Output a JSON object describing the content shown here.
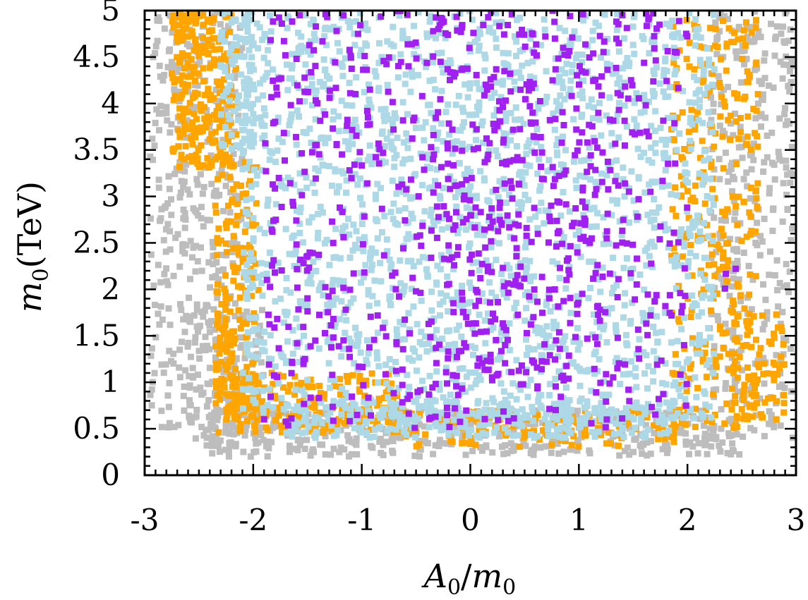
{
  "chart_data": {
    "type": "scatter",
    "title": "",
    "xlabel": {
      "main": "A",
      "sub1": "0",
      "slash": "/",
      "main2": "m",
      "sub2": "0"
    },
    "ylabel": {
      "main": "m",
      "sub": "0",
      "unit": "(TeV)"
    },
    "xlim": [
      -3,
      3
    ],
    "ylim": [
      0,
      5
    ],
    "xticks": [
      -3,
      -2,
      -1,
      0,
      1,
      2,
      3
    ],
    "xtick_labels": [
      "-3",
      "-2",
      "-1",
      "0",
      "1",
      "2",
      "3"
    ],
    "yticks": [
      0,
      0.5,
      1,
      1.5,
      2,
      2.5,
      3,
      3.5,
      4,
      4.5,
      5
    ],
    "ytick_labels": [
      "0",
      "0.5",
      "1",
      "1.5",
      "2",
      "2.5",
      "3",
      "3.5",
      "4",
      "4.5",
      "5"
    ],
    "grid": false,
    "legend": "none",
    "series": [
      {
        "name": "gray",
        "color": "#bdbdbd",
        "description": "broad background layer of scanned points",
        "regions": [
          {
            "x": [
              -2.95,
              -2.1
            ],
            "y": [
              0.5,
              5.0
            ],
            "n": 380
          },
          {
            "x": [
              2.2,
              2.97
            ],
            "y": [
              0.4,
              5.0
            ],
            "n": 340
          },
          {
            "x": [
              -2.4,
              2.5
            ],
            "y": [
              0.2,
              0.7
            ],
            "n": 420
          },
          {
            "x": [
              -2.6,
              -1.9
            ],
            "y": [
              0.3,
              1.8
            ],
            "n": 120
          }
        ]
      },
      {
        "name": "orange",
        "color": "#ffa500",
        "description": "band of points bordering the light-blue region",
        "regions": [
          {
            "x": [
              -2.75,
              -2.15
            ],
            "y": [
              3.3,
              5.0
            ],
            "n": 260
          },
          {
            "x": [
              -2.35,
              -1.95
            ],
            "y": [
              0.6,
              3.4
            ],
            "n": 200
          },
          {
            "x": [
              -2.35,
              -0.6
            ],
            "y": [
              0.45,
              1.1
            ],
            "n": 220
          },
          {
            "x": [
              -0.6,
              1.9
            ],
            "y": [
              0.3,
              0.7
            ],
            "n": 150
          },
          {
            "x": [
              1.85,
              2.65
            ],
            "y": [
              0.5,
              4.9
            ],
            "n": 300
          },
          {
            "x": [
              2.4,
              2.9
            ],
            "y": [
              0.6,
              1.8
            ],
            "n": 80
          }
        ]
      },
      {
        "name": "lightblue",
        "color": "#add8e6",
        "description": "dense central region",
        "regions": [
          {
            "x": [
              -2.1,
              2.25
            ],
            "y": [
              0.6,
              5.0
            ],
            "n": 1900
          },
          {
            "x": [
              -1.7,
              1.9
            ],
            "y": [
              0.4,
              0.8
            ],
            "n": 300
          },
          {
            "x": [
              -2.3,
              -2.0
            ],
            "y": [
              3.5,
              5.0
            ],
            "n": 100
          }
        ]
      },
      {
        "name": "purple",
        "color": "#a020f0",
        "description": "sparse points inside the central region",
        "regions": [
          {
            "x": [
              -1.9,
              2.0
            ],
            "y": [
              0.5,
              5.0
            ],
            "n": 620
          },
          {
            "x": [
              -0.4,
              1.2
            ],
            "y": [
              1.0,
              5.0
            ],
            "n": 220
          },
          {
            "x": [
              2.2,
              2.5
            ],
            "y": [
              2.0,
              2.3
            ],
            "n": 3
          }
        ]
      }
    ]
  }
}
